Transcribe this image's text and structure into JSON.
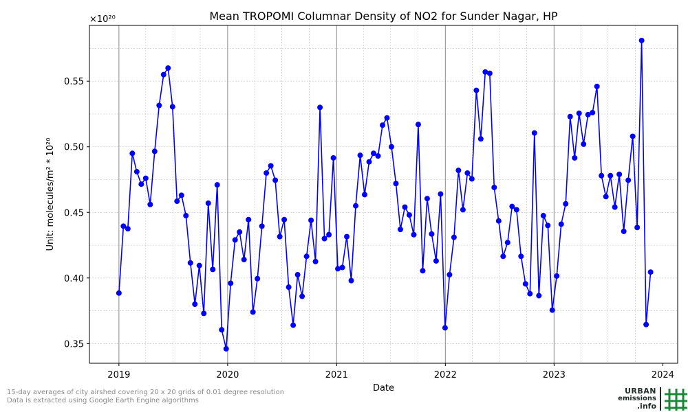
{
  "chart_data": {
    "type": "line",
    "title": "Mean TROPOMI Columnar Density of NO2 for Sunder Nagar, HP",
    "xlabel": "Date",
    "ylabel": "Unit: molecules/m² * 10²⁰",
    "y_multiplier": "×10²⁰",
    "xlim": [
      "2018-09-24",
      "2024-02-20"
    ],
    "ylim": [
      0.335,
      0.5925
    ],
    "x_ticks": [
      "2019",
      "2020",
      "2021",
      "2022",
      "2023",
      "2024"
    ],
    "y_ticks": [
      "0.35",
      "0.40",
      "0.45",
      "0.50",
      "0.55"
    ],
    "grid": true,
    "series_color": "#0000ff",
    "series": [
      {
        "points": [
          [
            "2019-01-01",
            0.3885
          ],
          [
            "2019-01-16",
            0.4395
          ],
          [
            "2019-01-31",
            0.4375
          ],
          [
            "2019-02-15",
            0.495
          ],
          [
            "2019-03-02",
            0.481
          ],
          [
            "2019-03-17",
            0.4715
          ],
          [
            "2019-04-01",
            0.476
          ],
          [
            "2019-04-16",
            0.456
          ],
          [
            "2019-05-01",
            0.4965
          ],
          [
            "2019-05-16",
            0.5315
          ],
          [
            "2019-05-31",
            0.555
          ],
          [
            "2019-06-15",
            0.56
          ],
          [
            "2019-06-30",
            0.5305
          ],
          [
            "2019-07-15",
            0.4585
          ],
          [
            "2019-07-30",
            0.463
          ],
          [
            "2019-08-14",
            0.4475
          ],
          [
            "2019-08-29",
            0.4115
          ],
          [
            "2019-09-13",
            0.38
          ],
          [
            "2019-09-28",
            0.4095
          ],
          [
            "2019-10-13",
            0.373
          ],
          [
            "2019-10-28",
            0.457
          ],
          [
            "2019-11-12",
            0.4065
          ],
          [
            "2019-11-27",
            0.471
          ],
          [
            "2019-12-12",
            0.3605
          ],
          [
            "2019-12-27",
            0.346
          ],
          [
            "2020-01-11",
            0.396
          ],
          [
            "2020-01-26",
            0.429
          ],
          [
            "2020-02-10",
            0.435
          ],
          [
            "2020-02-25",
            0.414
          ],
          [
            "2020-03-11",
            0.4445
          ],
          [
            "2020-03-26",
            0.374
          ],
          [
            "2020-04-10",
            0.3995
          ],
          [
            "2020-04-25",
            0.4395
          ],
          [
            "2020-05-10",
            0.48
          ],
          [
            "2020-05-25",
            0.4855
          ],
          [
            "2020-06-09",
            0.4745
          ],
          [
            "2020-06-24",
            0.4315
          ],
          [
            "2020-07-09",
            0.4445
          ],
          [
            "2020-07-24",
            0.393
          ],
          [
            "2020-08-08",
            0.364
          ],
          [
            "2020-08-23",
            0.4025
          ],
          [
            "2020-09-07",
            0.386
          ],
          [
            "2020-09-22",
            0.4165
          ],
          [
            "2020-10-07",
            0.444
          ],
          [
            "2020-10-22",
            0.4125
          ],
          [
            "2020-11-06",
            0.53
          ],
          [
            "2020-11-21",
            0.43
          ],
          [
            "2020-12-06",
            0.433
          ],
          [
            "2020-12-21",
            0.4915
          ],
          [
            "2021-01-05",
            0.407
          ],
          [
            "2021-01-20",
            0.408
          ],
          [
            "2021-02-04",
            0.4315
          ],
          [
            "2021-02-19",
            0.398
          ],
          [
            "2021-03-06",
            0.455
          ],
          [
            "2021-03-21",
            0.4935
          ],
          [
            "2021-04-05",
            0.4635
          ],
          [
            "2021-04-20",
            0.4885
          ],
          [
            "2021-05-05",
            0.495
          ],
          [
            "2021-05-20",
            0.493
          ],
          [
            "2021-06-04",
            0.5165
          ],
          [
            "2021-06-19",
            0.522
          ],
          [
            "2021-07-04",
            0.5
          ],
          [
            "2021-07-19",
            0.472
          ],
          [
            "2021-08-03",
            0.437
          ],
          [
            "2021-08-18",
            0.454
          ],
          [
            "2021-09-02",
            0.448
          ],
          [
            "2021-09-17",
            0.433
          ],
          [
            "2021-10-02",
            0.517
          ],
          [
            "2021-10-17",
            0.4055
          ],
          [
            "2021-11-01",
            0.4605
          ],
          [
            "2021-11-16",
            0.4335
          ],
          [
            "2021-12-01",
            0.413
          ],
          [
            "2021-12-16",
            0.464
          ],
          [
            "2021-12-31",
            0.362
          ],
          [
            "2022-01-15",
            0.4025
          ],
          [
            "2022-01-30",
            0.431
          ],
          [
            "2022-02-14",
            0.482
          ],
          [
            "2022-03-01",
            0.452
          ],
          [
            "2022-03-16",
            0.48
          ],
          [
            "2022-03-31",
            0.4755
          ],
          [
            "2022-04-15",
            0.543
          ],
          [
            "2022-04-30",
            0.506
          ],
          [
            "2022-05-15",
            0.557
          ],
          [
            "2022-05-30",
            0.556
          ],
          [
            "2022-06-14",
            0.469
          ],
          [
            "2022-06-29",
            0.4435
          ],
          [
            "2022-07-14",
            0.4165
          ],
          [
            "2022-07-29",
            0.427
          ],
          [
            "2022-08-13",
            0.4545
          ],
          [
            "2022-08-28",
            0.452
          ],
          [
            "2022-09-12",
            0.4165
          ],
          [
            "2022-09-27",
            0.3955
          ],
          [
            "2022-10-12",
            0.388
          ],
          [
            "2022-10-27",
            0.5105
          ],
          [
            "2022-11-11",
            0.3865
          ],
          [
            "2022-11-26",
            0.4475
          ],
          [
            "2022-12-11",
            0.44
          ],
          [
            "2022-12-26",
            0.3755
          ],
          [
            "2023-01-10",
            0.4015
          ],
          [
            "2023-01-25",
            0.441
          ],
          [
            "2023-02-09",
            0.4565
          ],
          [
            "2023-02-24",
            0.523
          ],
          [
            "2023-03-11",
            0.4915
          ],
          [
            "2023-03-26",
            0.5255
          ],
          [
            "2023-04-10",
            0.502
          ],
          [
            "2023-04-25",
            0.5245
          ],
          [
            "2023-05-10",
            0.526
          ],
          [
            "2023-05-25",
            0.546
          ],
          [
            "2023-06-09",
            0.478
          ],
          [
            "2023-06-24",
            0.462
          ],
          [
            "2023-07-09",
            0.478
          ],
          [
            "2023-07-24",
            0.454
          ],
          [
            "2023-08-08",
            0.479
          ],
          [
            "2023-08-23",
            0.4355
          ],
          [
            "2023-09-07",
            0.4745
          ],
          [
            "2023-09-22",
            0.508
          ],
          [
            "2023-10-07",
            0.4385
          ],
          [
            "2023-10-22",
            0.581
          ],
          [
            "2023-11-06",
            0.3645
          ],
          [
            "2023-11-21",
            0.4045
          ]
        ]
      }
    ]
  },
  "footer": {
    "line1": "15-day averages of city airshed covering 20 x 20 grids of 0.01 degree resolution",
    "line2": "Data is extracted using Google Earth Engine algorithms"
  },
  "logo": {
    "line1": "URBAN",
    "line2": "emissions",
    "line3": ".info"
  }
}
